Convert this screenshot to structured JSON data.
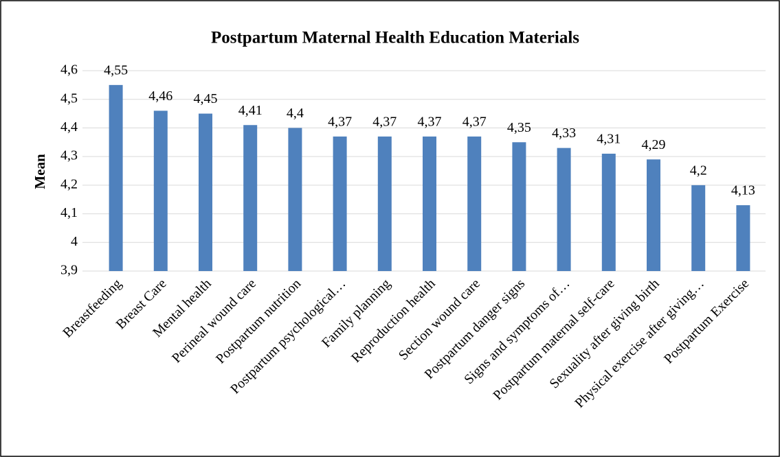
{
  "chart_data": {
    "type": "bar",
    "title": "Postpartum Maternal Health Education Materials",
    "y_label": "Mean",
    "categories": [
      "Breastfeeding",
      "Breast Care",
      "Mental health",
      "Perineal wound care",
      "Postpartum nutrition",
      "Postpartum psychological…",
      "Family planning",
      "Reproduction health",
      "Section wound care",
      "Postpartum danger signs",
      "Signs and symptoms of…",
      "Postpartum maternal self-care",
      "Sexuality after giving birth",
      "Physical exercise after giving…",
      "Postpartum Exercise"
    ],
    "values": [
      4.55,
      4.46,
      4.45,
      4.41,
      4.4,
      4.37,
      4.37,
      4.37,
      4.37,
      4.35,
      4.33,
      4.31,
      4.29,
      4.2,
      4.13
    ],
    "value_labels": [
      "4,55",
      "4,46",
      "4,45",
      "4,41",
      "4,4",
      "4,37",
      "4,37",
      "4,37",
      "4,37",
      "4,35",
      "4,33",
      "4,31",
      "4,29",
      "4,2",
      "4,13"
    ],
    "color": "#4f81bd",
    "ylim": [
      3.9,
      4.6
    ],
    "yticks": [
      {
        "value": 3.9,
        "label": "3,9"
      },
      4,
      {
        "value": 4.1,
        "label": "4,1"
      },
      {
        "value": 4.2,
        "label": "4,2"
      },
      {
        "value": 4.3,
        "label": "4,3"
      },
      {
        "value": 4.4,
        "label": "4,4"
      },
      {
        "value": 4.5,
        "label": "4,5"
      },
      {
        "value": 4.6,
        "label": "4,6"
      }
    ],
    "grid": true
  }
}
